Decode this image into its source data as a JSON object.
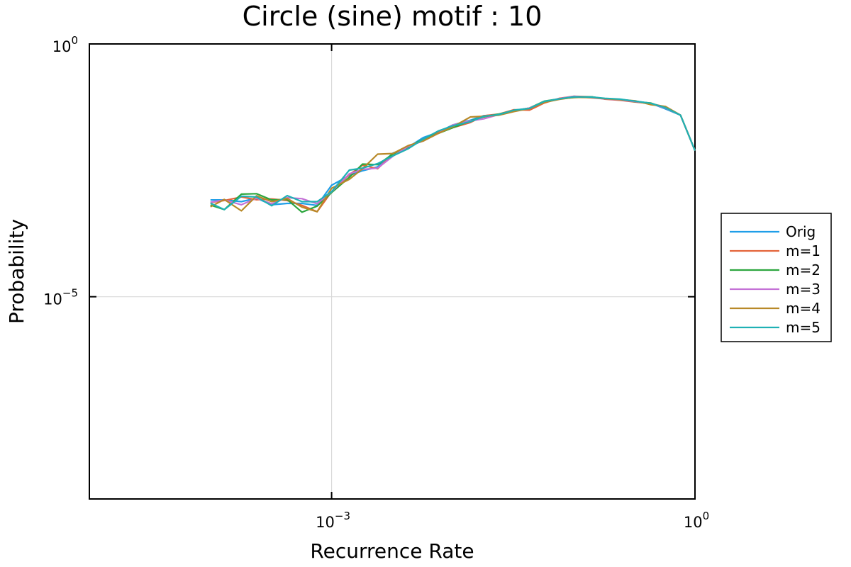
{
  "chart_data": {
    "type": "line",
    "title": "Circle (sine) motif : 10",
    "xlabel": "Recurrence Rate",
    "ylabel": "Probability",
    "xscale": "log10",
    "yscale": "log10",
    "xlim": [
      1e-05,
      1
    ],
    "ylim": [
      1e-09,
      1
    ],
    "xticks": [
      {
        "base": "10",
        "exp": "−3",
        "value": 0.001
      },
      {
        "base": "10",
        "exp": "0",
        "value": 1
      }
    ],
    "yticks": [
      {
        "base": "10",
        "exp": "−5",
        "value": 1e-05
      },
      {
        "base": "10",
        "exp": "0",
        "value": 1
      }
    ],
    "grid": true,
    "legend_position": "outside-right",
    "x": [
      0.0001,
      0.00013,
      0.00018,
      0.00024,
      0.00032,
      0.00043,
      0.00057,
      0.00076,
      0.001,
      0.0014,
      0.0018,
      0.0024,
      0.0032,
      0.0043,
      0.0057,
      0.0076,
      0.01,
      0.014,
      0.018,
      0.024,
      0.032,
      0.043,
      0.057,
      0.076,
      0.1,
      0.14,
      0.18,
      0.24,
      0.32,
      0.43,
      0.57,
      0.76,
      1.0
    ],
    "series": [
      {
        "name": "Orig",
        "color": "#1f9ee8",
        "values": [
          0.00082,
          0.00082,
          0.00076,
          0.00089,
          0.00066,
          0.0007,
          0.0007,
          0.00064,
          0.0016,
          0.0025,
          0.0031,
          0.0037,
          0.0069,
          0.0091,
          0.014,
          0.018,
          0.025,
          0.031,
          0.038,
          0.04,
          0.049,
          0.052,
          0.072,
          0.082,
          0.089,
          0.088,
          0.083,
          0.08,
          0.074,
          0.067,
          0.052,
          0.039,
          0.0078
        ]
      },
      {
        "name": "m=1",
        "color": "#e4643a",
        "values": [
          0.00073,
          0.0008,
          0.00094,
          0.00083,
          0.00086,
          0.0008,
          0.00064,
          0.00048,
          0.0012,
          0.0026,
          0.004,
          0.0034,
          0.0066,
          0.0089,
          0.013,
          0.018,
          0.022,
          0.028,
          0.038,
          0.041,
          0.05,
          0.049,
          0.068,
          0.084,
          0.092,
          0.09,
          0.081,
          0.077,
          0.071,
          0.066,
          0.057,
          0.039,
          0.0078
        ]
      },
      {
        "name": "m=2",
        "color": "#2ca63e",
        "values": [
          0.00065,
          0.00053,
          0.00107,
          0.00109,
          0.00082,
          0.00084,
          0.00047,
          0.00062,
          0.00115,
          0.0023,
          0.0042,
          0.0041,
          0.0066,
          0.0092,
          0.013,
          0.017,
          0.022,
          0.03,
          0.036,
          0.041,
          0.048,
          0.054,
          0.074,
          0.082,
          0.087,
          0.09,
          0.082,
          0.08,
          0.072,
          0.068,
          0.054,
          0.039,
          0.0078
        ]
      },
      {
        "name": "m=3",
        "color": "#c471d6",
        "values": [
          0.00074,
          0.00082,
          0.00066,
          0.00089,
          0.00069,
          0.00091,
          0.00087,
          0.00069,
          0.0012,
          0.0027,
          0.0033,
          0.0035,
          0.006,
          0.0095,
          0.012,
          0.017,
          0.025,
          0.03,
          0.033,
          0.04,
          0.048,
          0.054,
          0.071,
          0.083,
          0.092,
          0.086,
          0.082,
          0.078,
          0.073,
          0.066,
          0.054,
          0.039,
          0.0078
        ]
      },
      {
        "name": "m=4",
        "color": "#b88928",
        "values": [
          0.0006,
          0.00084,
          0.0005,
          0.00099,
          0.00076,
          0.00088,
          0.00059,
          0.00048,
          0.0014,
          0.0021,
          0.0034,
          0.0066,
          0.0068,
          0.0098,
          0.012,
          0.017,
          0.023,
          0.036,
          0.037,
          0.039,
          0.046,
          0.053,
          0.07,
          0.08,
          0.088,
          0.087,
          0.083,
          0.079,
          0.075,
          0.063,
          0.058,
          0.039,
          0.0078
        ]
      },
      {
        "name": "m=5",
        "color": "#1fb1b4",
        "values": [
          0.00071,
          0.00053,
          0.00097,
          0.00094,
          0.00063,
          0.001,
          0.00076,
          0.00076,
          0.0012,
          0.0032,
          0.0035,
          0.0043,
          0.0061,
          0.0085,
          0.013,
          0.019,
          0.024,
          0.029,
          0.037,
          0.04,
          0.049,
          0.053,
          0.073,
          0.082,
          0.09,
          0.089,
          0.084,
          0.081,
          0.074,
          0.067,
          0.055,
          0.039,
          0.0078
        ]
      }
    ]
  }
}
